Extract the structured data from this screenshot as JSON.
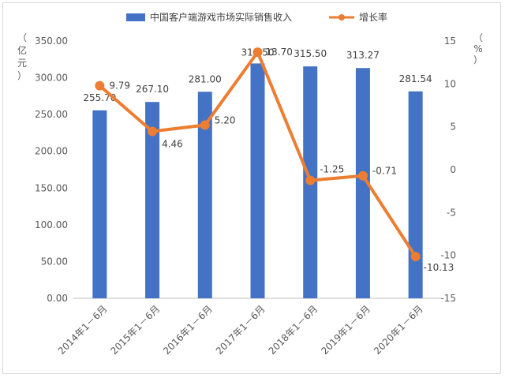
{
  "chart_data": {
    "type": "bar",
    "categories": [
      "2014年1－6月",
      "2015年1－6月",
      "2016年1－6月",
      "2017年1－6月",
      "2018年1－6月",
      "2019年1－6月",
      "2020年1－6月"
    ],
    "series": [
      {
        "name": "中国客户端游戏市场实际销售收入",
        "type": "bar",
        "axis": "left",
        "values": [
          255.7,
          267.1,
          281.0,
          319.5,
          315.5,
          313.27,
          281.54
        ],
        "labels": [
          "255.70",
          "267.10",
          "281.00",
          "319.50",
          "315.50",
          "313.27",
          "281.54"
        ],
        "color": "#4472c4"
      },
      {
        "name": "增长率",
        "type": "line",
        "axis": "right",
        "values": [
          9.79,
          4.46,
          5.2,
          13.7,
          -1.25,
          -0.71,
          -10.13
        ],
        "labels": [
          "9.79",
          "4.46",
          "5.20",
          "13.70",
          "-1.25",
          "-0.71",
          "-10.13"
        ],
        "color": "#ed7d31"
      }
    ],
    "y_left": {
      "unit_chars": [
        "（",
        "亿",
        "元",
        "）"
      ],
      "ylim": [
        0,
        350
      ],
      "ticks": [
        "0.00",
        "50.00",
        "100.00",
        "150.00",
        "200.00",
        "250.00",
        "300.00",
        "350.00"
      ]
    },
    "y_right": {
      "unit_chars": [
        "（",
        "%",
        "）"
      ],
      "ylim": [
        -15,
        15
      ],
      "ticks": [
        "-15",
        "-10",
        "-5",
        "0",
        "5",
        "10",
        "15"
      ]
    },
    "grid": false,
    "legend_position": "top-center"
  }
}
